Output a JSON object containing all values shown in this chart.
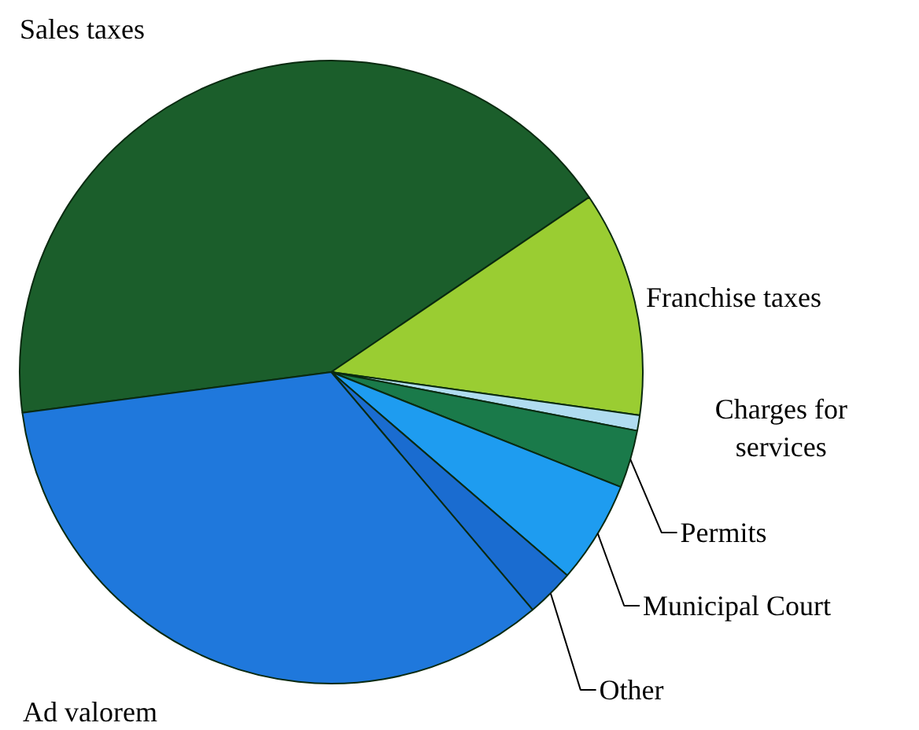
{
  "chart_data": {
    "type": "pie",
    "categories": [
      "Sales taxes",
      "Franchise taxes",
      "Charges for services",
      "Permits",
      "Municipal Court",
      "Other",
      "Ad valorem"
    ],
    "values": [
      42.6,
      11.7,
      0.8,
      3.0,
      5.3,
      2.5,
      34.1
    ],
    "colors": [
      "#1b5e2b",
      "#9acd32",
      "#b0dcf0",
      "#1a7a4a",
      "#1e9cf0",
      "#1a6cd0",
      "#1f78dc"
    ]
  }
}
